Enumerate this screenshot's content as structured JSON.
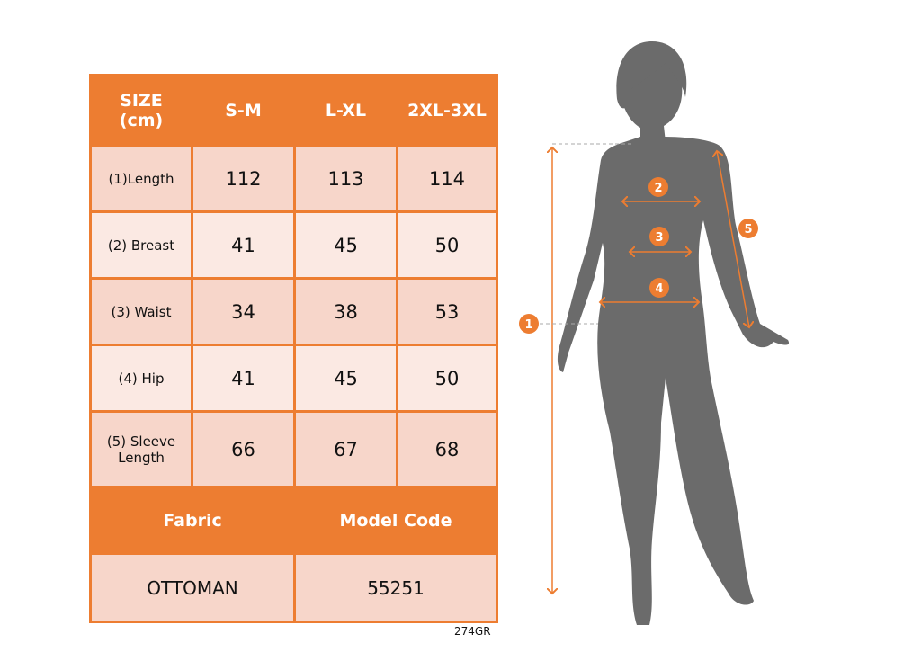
{
  "table": {
    "header": [
      "SIZE\n(cm)",
      "S-M",
      "L-XL",
      "2XL-3XL"
    ],
    "header_size_line1": "SIZE",
    "header_size_line2": "(cm)",
    "rows": [
      {
        "label": "(1)Length",
        "values": [
          "112",
          "113",
          "114"
        ]
      },
      {
        "label": "(2) Breast",
        "values": [
          "41",
          "45",
          "50"
        ]
      },
      {
        "label": "(3) Waist",
        "values": [
          "34",
          "38",
          "53"
        ]
      },
      {
        "label": "(4) Hip",
        "values": [
          "41",
          "45",
          "50"
        ]
      },
      {
        "label": "(5) Sleeve Length",
        "values": [
          "66",
          "67",
          "68"
        ]
      }
    ],
    "fabric_label": "Fabric",
    "model_code_label": "Model Code",
    "fabric_value": "OTTOMAN",
    "model_code_value": "55251"
  },
  "product_code": "274GR",
  "figure": {
    "markers": [
      "1",
      "2",
      "3",
      "4",
      "5"
    ],
    "accent_color": "#ED7D31",
    "silhouette_color": "#6B6B6B"
  }
}
